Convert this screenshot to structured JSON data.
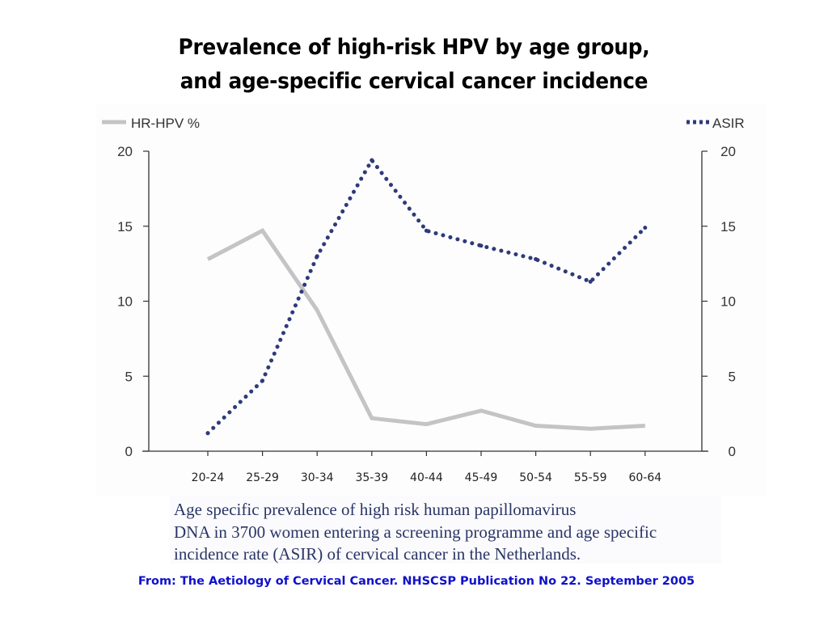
{
  "title": {
    "line1": "Prevalence of high-risk HPV by age group,",
    "line2": "and age-specific cervical cancer incidence"
  },
  "caption": {
    "line1": "Age specific prevalence of high risk human papillomavirus",
    "line2": "DNA in 3700 women entering a screening programme and age specific",
    "line3": "incidence rate (ASIR) of cervical cancer in the Netherlands."
  },
  "source": "From: The Aetiology of Cervical Cancer. NHSCSP Publication No 22. September 2005",
  "colors": {
    "hpv_line": "#c4c4c6",
    "asir_line": "#2e3a7a",
    "axis": "#333333",
    "tick_text": "#333333",
    "source_text": "#1010cc"
  },
  "chart_data": {
    "type": "line",
    "title": "Prevalence of high-risk HPV by age group, and age-specific cervical cancer incidence",
    "xlabel": "",
    "ylabel_left": "",
    "ylabel_right": "",
    "categories": [
      "20-24",
      "25-29",
      "30-34",
      "35-39",
      "40-44",
      "45-49",
      "50-54",
      "55-59",
      "60-64"
    ],
    "series": [
      {
        "name": "HR-HPV %",
        "axis": "left",
        "style": "solid",
        "values": [
          12.8,
          14.7,
          9.4,
          2.2,
          1.8,
          2.7,
          1.7,
          1.5,
          1.7
        ]
      },
      {
        "name": "ASIR",
        "axis": "right",
        "style": "dotted",
        "values": [
          1.2,
          4.7,
          13.0,
          19.4,
          14.7,
          13.7,
          12.8,
          11.3,
          14.9
        ]
      }
    ],
    "ylim_left": [
      0,
      20
    ],
    "ylim_right": [
      0,
      20
    ],
    "yticks_left": [
      "0",
      "5",
      "10",
      "15",
      "20"
    ],
    "yticks_right": [
      "0",
      "5",
      "10",
      "15",
      "20"
    ],
    "grid": false,
    "legend": {
      "left_entry": "HR-HPV %",
      "right_entry": "ASIR",
      "placement": "top"
    }
  }
}
